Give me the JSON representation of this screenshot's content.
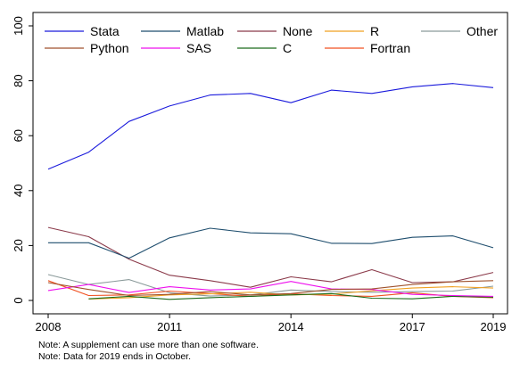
{
  "chart_data": {
    "type": "line",
    "x": [
      2008,
      2009,
      2010,
      2011,
      2012,
      2013,
      2014,
      2015,
      2016,
      2017,
      2018,
      2019
    ],
    "xticks": [
      2008,
      2011,
      2014,
      2017,
      2019
    ],
    "yticks": [
      0,
      20,
      40,
      60,
      80,
      100
    ],
    "xlim": [
      2008,
      2019
    ],
    "ylim": [
      0,
      100
    ],
    "grid": false,
    "legend_position": "top",
    "series": [
      {
        "name": "Stata",
        "color": "#1a1adc",
        "values": [
          47.8,
          54.0,
          65.2,
          70.8,
          74.8,
          75.4,
          72.0,
          76.6,
          75.4,
          77.8,
          79.0,
          77.5
        ]
      },
      {
        "name": "Python",
        "color": "#a0522d",
        "values": [
          6.5,
          4.0,
          1.8,
          2.2,
          3.2,
          2.0,
          2.5,
          4.0,
          4.2,
          5.8,
          6.8,
          7.2
        ]
      },
      {
        "name": "Matlab",
        "color": "#1f4e6e",
        "values": [
          21.0,
          21.0,
          15.4,
          22.8,
          26.3,
          24.6,
          24.3,
          20.8,
          20.7,
          23.0,
          23.5,
          19.2
        ]
      },
      {
        "name": "SAS",
        "color": "#ee10ee",
        "values": [
          3.6,
          5.8,
          2.9,
          5.0,
          3.8,
          4.2,
          6.9,
          4.2,
          4.0,
          2.2,
          1.8,
          1.5
        ]
      },
      {
        "name": "None",
        "color": "#8b3a4a",
        "values": [
          26.6,
          23.2,
          15.0,
          9.2,
          7.2,
          4.8,
          8.6,
          6.8,
          11.2,
          6.5,
          6.8,
          10.2
        ]
      },
      {
        "name": "C",
        "color": "#1b6b1b",
        "values": [
          null,
          0.6,
          1.5,
          0.4,
          1.0,
          1.5,
          2.0,
          2.5,
          0.8,
          0.6,
          1.5,
          1.2
        ]
      },
      {
        "name": "R",
        "color": "#f0a020",
        "values": [
          null,
          0.5,
          1.0,
          2.0,
          2.4,
          3.0,
          2.0,
          2.3,
          3.5,
          4.5,
          5.0,
          4.5
        ]
      },
      {
        "name": "Fortran",
        "color": "#f05020",
        "values": [
          7.2,
          1.8,
          2.0,
          3.4,
          2.5,
          1.5,
          2.4,
          1.8,
          1.5,
          2.8,
          1.5,
          1.0
        ]
      },
      {
        "name": "Other",
        "color": "#8a9a9a",
        "values": [
          9.4,
          5.8,
          7.6,
          2.8,
          1.6,
          2.0,
          3.8,
          3.2,
          3.0,
          3.2,
          3.4,
          5.2
        ]
      }
    ]
  },
  "notes": [
    "Note: A supplement can use more than one software.",
    "Note: Data for 2019 ends in October."
  ]
}
